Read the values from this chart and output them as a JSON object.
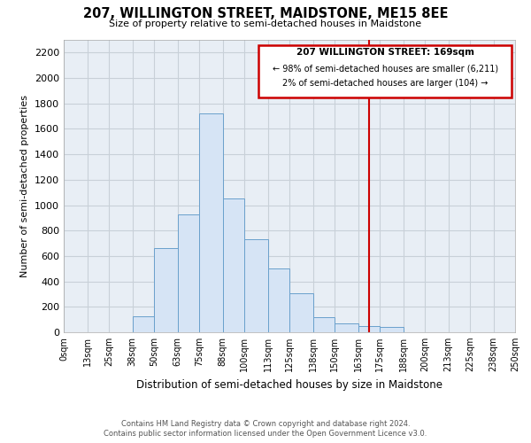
{
  "title": "207, WILLINGTON STREET, MAIDSTONE, ME15 8EE",
  "subtitle": "Size of property relative to semi-detached houses in Maidstone",
  "xlabel": "Distribution of semi-detached houses by size in Maidstone",
  "ylabel": "Number of semi-detached properties",
  "bin_labels": [
    "0sqm",
    "13sqm",
    "25sqm",
    "38sqm",
    "50sqm",
    "63sqm",
    "75sqm",
    "88sqm",
    "100sqm",
    "113sqm",
    "125sqm",
    "138sqm",
    "150sqm",
    "163sqm",
    "175sqm",
    "188sqm",
    "200sqm",
    "213sqm",
    "225sqm",
    "238sqm",
    "250sqm"
  ],
  "bin_edges": [
    0,
    13,
    25,
    38,
    50,
    63,
    75,
    88,
    100,
    113,
    125,
    138,
    150,
    163,
    175,
    188,
    200,
    213,
    225,
    238,
    250
  ],
  "bar_heights": [
    0,
    0,
    0,
    125,
    665,
    925,
    1720,
    1055,
    730,
    500,
    310,
    120,
    70,
    50,
    40,
    0,
    0,
    0,
    0,
    0
  ],
  "bar_color": "#d6e4f5",
  "bar_edge_color": "#6aa0cc",
  "vline_x": 169,
  "vline_color": "#cc0000",
  "ylim": [
    0,
    2300
  ],
  "yticks": [
    0,
    200,
    400,
    600,
    800,
    1000,
    1200,
    1400,
    1600,
    1800,
    2000,
    2200
  ],
  "annotation_title": "207 WILLINGTON STREET: 169sqm",
  "annotation_line1": "← 98% of semi-detached houses are smaller (6,211)",
  "annotation_line2": "2% of semi-detached houses are larger (104) →",
  "footer_line1": "Contains HM Land Registry data © Crown copyright and database right 2024.",
  "footer_line2": "Contains public sector information licensed under the Open Government Licence v3.0.",
  "grid_color": "#c8d0d8",
  "plot_bg_color": "#e8eef5",
  "background_color": "#ffffff"
}
